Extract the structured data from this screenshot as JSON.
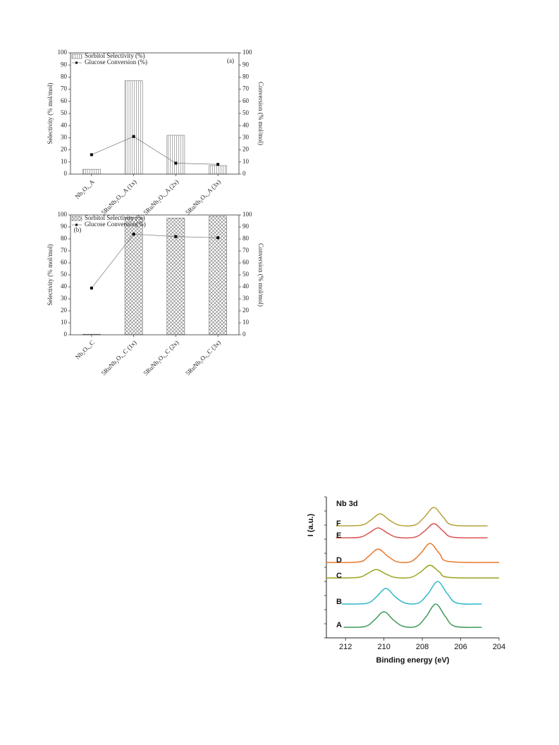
{
  "chart_data": [
    {
      "type": "bar",
      "annotation": "(a)",
      "categories": [
        "Nb₂Oₓ_A",
        "5RuNb₂Oₓ_A (1x)",
        "5RuNb₂Oₓ_A (2x)",
        "5RuNb₂Oₓ_A (3x)"
      ],
      "ylabel": "Selectivity (% mol/mol)",
      "y2label": "Conversion (% mol/mol)",
      "ylim": [
        0,
        100
      ],
      "yticks": [
        0,
        10,
        20,
        30,
        40,
        50,
        60,
        70,
        80,
        90,
        100
      ],
      "y2lim": [
        0,
        100
      ],
      "y2ticks": [
        0,
        10,
        20,
        30,
        40,
        50,
        60,
        70,
        80,
        90,
        100
      ],
      "pattern": "vertical",
      "series": [
        {
          "name": "Sorbitol Selectivity (%)",
          "color": "#555555",
          "values": [
            4,
            77,
            32,
            7
          ]
        },
        {
          "name": "Glucose Conversion (%)",
          "color": "#000000",
          "axis": "y2",
          "values": [
            16,
            31,
            9,
            8
          ]
        }
      ]
    },
    {
      "type": "bar",
      "annotation": "(b)",
      "categories": [
        "Nb₂Oₓ_C",
        "5RuNb₂Oₓ_C (1x)",
        "5RuNb₂Oₓ_C (2x)",
        "5RuNb₂Oₓ_C (3x)"
      ],
      "ylabel": "Selectivity (% mol/mol)",
      "y2label": "Conversion (% mol/mol)",
      "ylim": [
        0,
        100
      ],
      "yticks": [
        0,
        10,
        20,
        30,
        40,
        50,
        60,
        70,
        80,
        90,
        100
      ],
      "y2lim": [
        0,
        100
      ],
      "y2ticks": [
        0,
        10,
        20,
        30,
        40,
        50,
        60,
        70,
        80,
        90,
        100
      ],
      "pattern": "cross",
      "series": [
        {
          "name": "Sorbitol Selectivity (%)",
          "color": "#555555",
          "values": [
            0.5,
            98,
            97.5,
            99
          ]
        },
        {
          "name": "Glucose Conversion(%)",
          "color": "#000000",
          "axis": "y2",
          "values": [
            39,
            84,
            82,
            81
          ]
        }
      ]
    },
    {
      "type": "line",
      "title": "Nb 3d",
      "xlabel": "Binding energy (eV)",
      "ylabel": "I (a.u.)",
      "xlim": [
        213,
        204
      ],
      "xticks": [
        212,
        210,
        208,
        206,
        204
      ],
      "ylim": [
        0,
        100
      ],
      "series": [
        {
          "name": "A",
          "color": "#3f9a5a",
          "x": [
            212.1,
            211.0,
            210.5,
            210.0,
            209.5,
            209.0,
            208.3,
            207.8,
            207.3,
            206.8,
            206.3,
            204.9
          ],
          "values": [
            7.5,
            8,
            12.6,
            18.5,
            12.6,
            8.2,
            8.2,
            15.1,
            24,
            15.1,
            8.2,
            7.5
          ]
        },
        {
          "name": "B",
          "color": "#2fb8c8",
          "x": [
            212.2,
            210.9,
            210.4,
            209.9,
            209.4,
            208.9,
            208.2,
            207.7,
            207.2,
            206.7,
            206.2,
            204.9
          ],
          "values": [
            24,
            24.5,
            29,
            35,
            29,
            24.7,
            24.7,
            31.4,
            40,
            31.4,
            24.7,
            24
          ]
        },
        {
          "name": "C",
          "color": "#9aa21e",
          "x": [
            213,
            211.4,
            210.9,
            210.4,
            209.9,
            209.4,
            208.6,
            208.1,
            207.6,
            207.1,
            206.6,
            204
          ],
          "values": [
            42.5,
            42.8,
            45.3,
            48.5,
            45.3,
            42.8,
            42.9,
            46.6,
            51.5,
            46.6,
            42.9,
            42.5
          ]
        },
        {
          "name": "D",
          "color": "#e8782a",
          "x": [
            213,
            211.3,
            210.8,
            210.3,
            209.8,
            209.3,
            208.6,
            208.1,
            207.6,
            207.1,
            206.6,
            204
          ],
          "values": [
            53.5,
            53.9,
            57.9,
            63,
            57.9,
            53.9,
            54.1,
            59.7,
            67,
            59.7,
            54.1,
            53.5
          ]
        },
        {
          "name": "E",
          "color": "#d9534f",
          "x": [
            212.5,
            211.3,
            210.8,
            210.3,
            209.8,
            209.3,
            208.4,
            207.9,
            207.4,
            206.9,
            206.4,
            204.6
          ],
          "values": [
            71,
            71.3,
            74.2,
            78,
            74.2,
            71.3,
            71.4,
            75.6,
            81,
            75.6,
            71.4,
            71
          ]
        },
        {
          "name": "F",
          "color": "#b6a23a",
          "x": [
            212.5,
            211.2,
            210.7,
            210.2,
            209.7,
            209.2,
            208.4,
            207.9,
            207.4,
            206.9,
            206.4,
            204.6
          ],
          "values": [
            79.5,
            79.9,
            83.4,
            88,
            83.4,
            79.9,
            80,
            85.5,
            92.5,
            85.5,
            80,
            79.5
          ]
        }
      ]
    }
  ]
}
